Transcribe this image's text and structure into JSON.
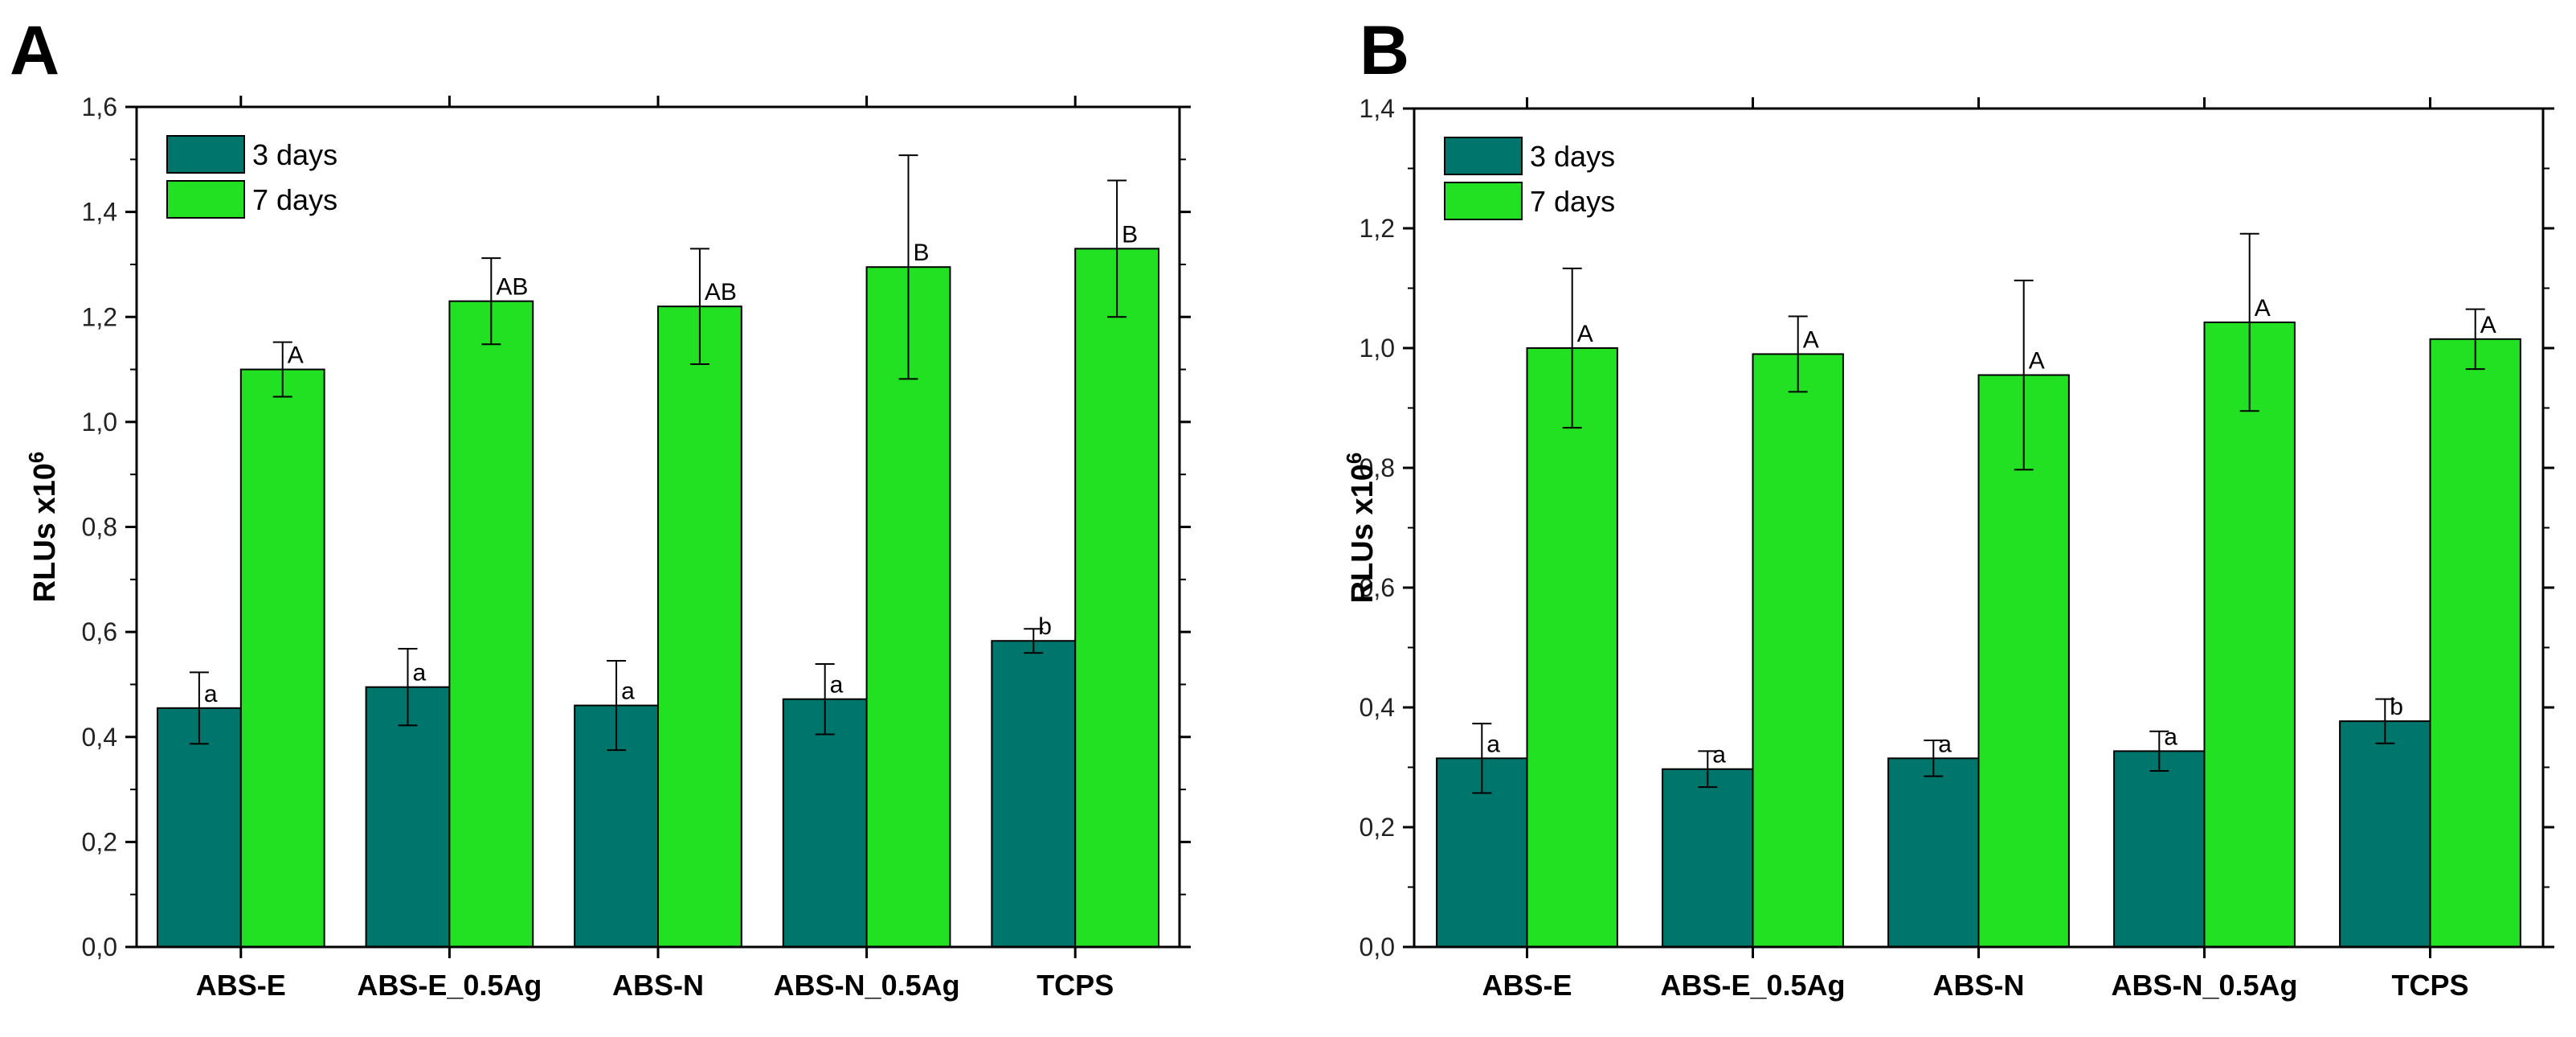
{
  "chart_data": [
    {
      "panel": "A",
      "type": "bar",
      "title": "",
      "xlabel": "",
      "ylabel": "RLUs x10",
      "ylabel_sup": "6",
      "ylim": [
        0,
        1.6
      ],
      "yticks": [
        "0,0",
        "0,2",
        "0,4",
        "0,6",
        "0,8",
        "1,0",
        "1,2",
        "1,4",
        "1,6"
      ],
      "ytick_values": [
        0,
        0.2,
        0.4,
        0.6,
        0.8,
        1.0,
        1.2,
        1.4,
        1.6
      ],
      "grid": false,
      "legend_position": "top-left",
      "categories": [
        "ABS-E",
        "ABS-E_0.5Ag",
        "ABS-N",
        "ABS-N_0.5Ag",
        "TCPS"
      ],
      "series": [
        {
          "name": "3 days",
          "color": "#00756b",
          "values": [
            0.455,
            0.495,
            0.46,
            0.472,
            0.583
          ],
          "errors": [
            0.068,
            0.073,
            0.085,
            0.067,
            0.023
          ],
          "labels": [
            "a",
            "a",
            "a",
            "a",
            "b"
          ]
        },
        {
          "name": "7 days",
          "color": "#22e022",
          "values": [
            1.1,
            1.23,
            1.22,
            1.295,
            1.33
          ],
          "errors": [
            0.052,
            0.082,
            0.11,
            0.213,
            0.13
          ],
          "labels": [
            "A",
            "AB",
            "AB",
            "B",
            "B"
          ]
        }
      ]
    },
    {
      "panel": "B",
      "type": "bar",
      "title": "",
      "xlabel": "",
      "ylabel": "RLUs x10",
      "ylabel_sup": "6",
      "ylim": [
        0,
        1.4
      ],
      "yticks": [
        "0,0",
        "0,2",
        "0,4",
        "0,6",
        "0,8",
        "1,0",
        "1,2",
        "1,4"
      ],
      "ytick_values": [
        0,
        0.2,
        0.4,
        0.6,
        0.8,
        1.0,
        1.2,
        1.4
      ],
      "grid": false,
      "legend_position": "top-left",
      "categories": [
        "ABS-E",
        "ABS-E_0.5Ag",
        "ABS-N",
        "ABS-N_0.5Ag",
        "TCPS"
      ],
      "series": [
        {
          "name": "3 days",
          "color": "#00756b",
          "values": [
            0.315,
            0.297,
            0.315,
            0.327,
            0.377
          ],
          "errors": [
            0.058,
            0.03,
            0.03,
            0.033,
            0.037
          ],
          "labels": [
            "a",
            "a",
            "a",
            "a",
            "b"
          ]
        },
        {
          "name": "7 days",
          "color": "#22e022",
          "values": [
            1.0,
            0.99,
            0.955,
            1.043,
            1.015
          ],
          "errors": [
            0.133,
            0.063,
            0.158,
            0.148,
            0.05
          ],
          "labels": [
            "A",
            "A",
            "A",
            "A",
            "A"
          ]
        }
      ]
    }
  ]
}
